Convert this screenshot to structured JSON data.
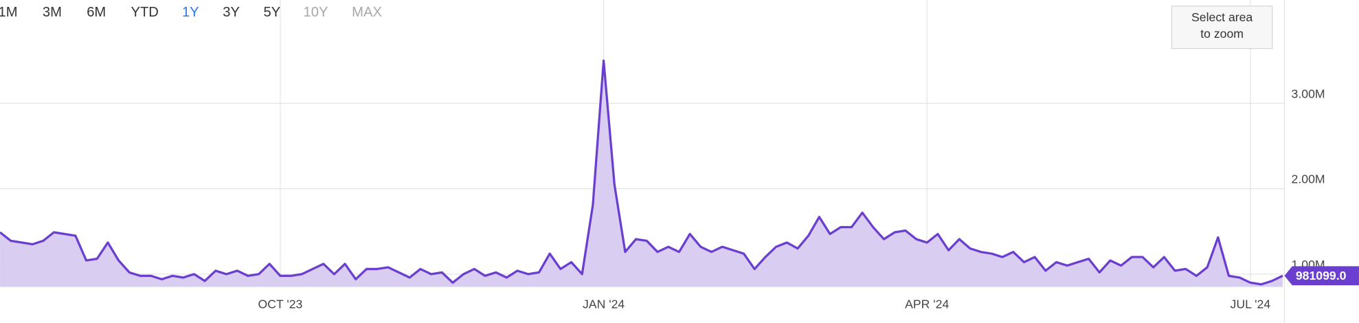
{
  "range_buttons": [
    {
      "label": "1M",
      "state": "enabled"
    },
    {
      "label": "3M",
      "state": "enabled"
    },
    {
      "label": "6M",
      "state": "enabled"
    },
    {
      "label": "YTD",
      "state": "enabled"
    },
    {
      "label": "1Y",
      "state": "selected"
    },
    {
      "label": "3Y",
      "state": "enabled"
    },
    {
      "label": "5Y",
      "state": "enabled"
    },
    {
      "label": "10Y",
      "state": "disabled"
    },
    {
      "label": "MAX",
      "state": "disabled"
    }
  ],
  "zoom_hint": [
    "Select area",
    "to zoom"
  ],
  "chart_data": {
    "type": "area",
    "color": "#6a3fd0",
    "fill_color": "#d9cdf1",
    "grid": true,
    "categories": [
      null,
      null,
      null,
      null,
      null,
      null,
      null,
      null,
      null,
      null,
      null,
      null,
      null,
      null,
      null,
      null,
      null,
      null,
      null,
      null,
      null,
      null,
      null,
      null,
      null,
      null,
      "OCT '23",
      null,
      null,
      null,
      null,
      null,
      null,
      null,
      null,
      null,
      null,
      null,
      null,
      null,
      null,
      null,
      null,
      null,
      null,
      null,
      null,
      null,
      null,
      null,
      null,
      null,
      null,
      null,
      null,
      null,
      "JAN '24",
      null,
      null,
      null,
      null,
      null,
      null,
      null,
      null,
      null,
      null,
      null,
      null,
      null,
      null,
      null,
      null,
      null,
      null,
      null,
      null,
      null,
      null,
      null,
      null,
      null,
      null,
      null,
      null,
      null,
      "APR '24",
      null,
      null,
      null,
      null,
      null,
      null,
      null,
      null,
      null,
      null,
      null,
      null,
      null,
      null,
      null,
      null,
      null,
      null,
      null,
      null,
      null,
      null,
      null,
      null,
      null,
      null,
      null,
      null,
      null,
      "JUL '24",
      null,
      null,
      null
    ],
    "values": [
      1490000,
      1390000,
      1370000,
      1350000,
      1390000,
      1490000,
      1470000,
      1450000,
      1160000,
      1180000,
      1370000,
      1160000,
      1020000,
      980000,
      980000,
      940000,
      980000,
      960000,
      1000000,
      920000,
      1040000,
      1000000,
      1040000,
      980000,
      1000000,
      1120000,
      980000,
      980000,
      1000000,
      1060000,
      1120000,
      1000000,
      1120000,
      940000,
      1060000,
      1060000,
      1080000,
      1020000,
      960000,
      1060000,
      1000000,
      1020000,
      900000,
      1000000,
      1060000,
      980000,
      1020000,
      960000,
      1040000,
      1000000,
      1020000,
      1240000,
      1060000,
      1140000,
      1000000,
      1810000,
      3500000,
      2050000,
      1260000,
      1410000,
      1390000,
      1260000,
      1320000,
      1260000,
      1470000,
      1320000,
      1260000,
      1320000,
      1280000,
      1240000,
      1060000,
      1200000,
      1320000,
      1370000,
      1300000,
      1450000,
      1670000,
      1470000,
      1550000,
      1550000,
      1720000,
      1550000,
      1410000,
      1490000,
      1510000,
      1410000,
      1370000,
      1470000,
      1280000,
      1410000,
      1300000,
      1260000,
      1240000,
      1200000,
      1260000,
      1140000,
      1200000,
      1040000,
      1140000,
      1100000,
      1140000,
      1180000,
      1020000,
      1160000,
      1100000,
      1200000,
      1200000,
      1080000,
      1200000,
      1040000,
      1060000,
      980000,
      1080000,
      1430000,
      980000,
      960000,
      900000,
      880000,
      920000,
      981099
    ],
    "value_labels": [
      null,
      null,
      null,
      null,
      null,
      null,
      null,
      null,
      null,
      null,
      null,
      null,
      null,
      null,
      null,
      null,
      null,
      null,
      null,
      null,
      null,
      null,
      null,
      null,
      null,
      null,
      null,
      null,
      null,
      null,
      null,
      null,
      null,
      null,
      null,
      null,
      null,
      null,
      null,
      null,
      null,
      null,
      null,
      null,
      null,
      null,
      null,
      null,
      null,
      null,
      null,
      null,
      null,
      null,
      null,
      null,
      null,
      null,
      null,
      null,
      null,
      null,
      null,
      null,
      null,
      null,
      null,
      null,
      null,
      null,
      null,
      null,
      null,
      null,
      null,
      null,
      null,
      null,
      null,
      null,
      null,
      null,
      null,
      null,
      null,
      null,
      null,
      null,
      null,
      null,
      null,
      null,
      null,
      null,
      null,
      null,
      null,
      null,
      null,
      null,
      null,
      null,
      null,
      null,
      null,
      null,
      null,
      null,
      null,
      null,
      null,
      null,
      null,
      null,
      null,
      null,
      null,
      null,
      null,
      "981099.0"
    ],
    "ylim": [
      850000,
      4200000
    ],
    "yticks": [
      {
        "value": 1000000,
        "label": "1.00M"
      },
      {
        "value": 2000000,
        "label": "2.00M"
      },
      {
        "value": 3000000,
        "label": "3.00M"
      }
    ]
  }
}
